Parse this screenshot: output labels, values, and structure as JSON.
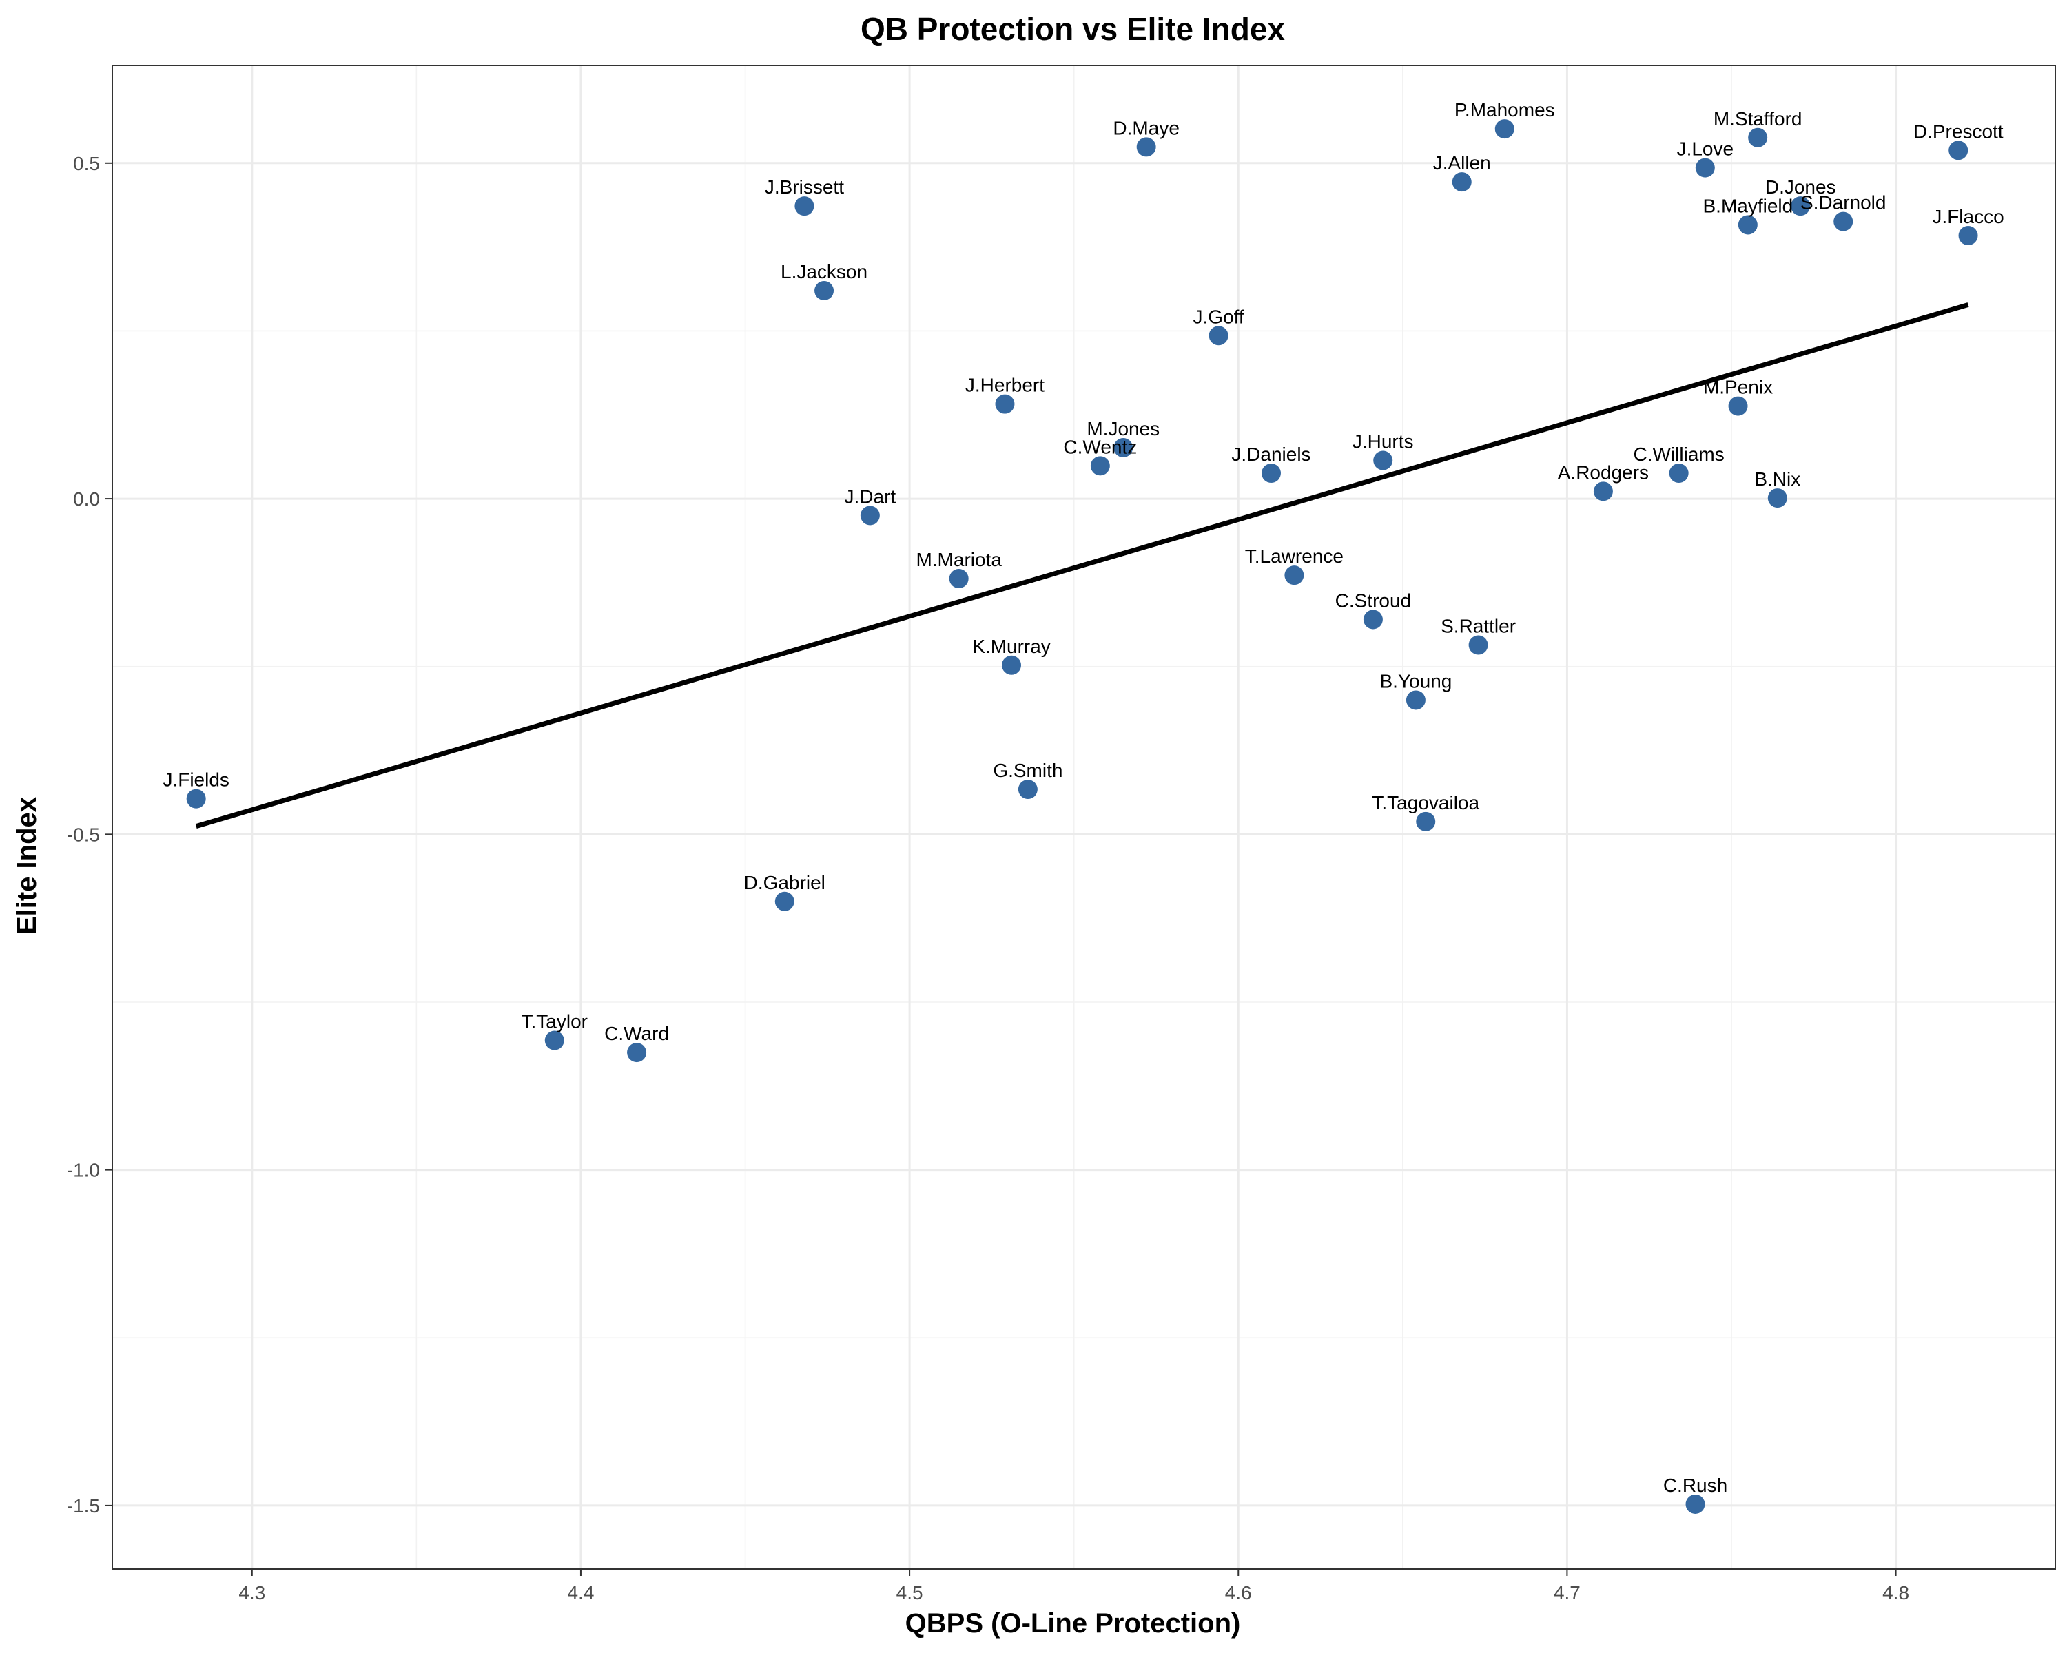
{
  "chart_data": {
    "type": "scatter",
    "title": "QB Protection vs Elite Index",
    "xlabel": "QBPS (O-Line Protection)",
    "ylabel": "Elite Index",
    "xlim": [
      4.2575,
      4.8485
    ],
    "ylim": [
      -1.5945,
      0.6455
    ],
    "x_ticks": [
      4.3,
      4.4,
      4.5,
      4.6,
      4.7,
      4.8
    ],
    "x_tick_labels": [
      "4.3",
      "4.4",
      "4.5",
      "4.6",
      "4.7",
      "4.8"
    ],
    "y_ticks": [
      0.5,
      0.0,
      -0.5,
      -1.0,
      -1.5
    ],
    "y_tick_labels": [
      "0.5",
      "0.0",
      "-0.5",
      "-1.0",
      "-1.5"
    ],
    "grid": true,
    "point_color": "#3568a0",
    "trend_line": {
      "x": [
        4.283,
        4.822
      ],
      "y": [
        -0.488,
        0.289
      ],
      "color": "#000000"
    },
    "points": [
      {
        "label": "P.Mahomes",
        "x": 4.681,
        "y": 0.551
      },
      {
        "label": "M.Stafford",
        "x": 4.758,
        "y": 0.538
      },
      {
        "label": "D.Maye",
        "x": 4.572,
        "y": 0.524
      },
      {
        "label": "D.Prescott",
        "x": 4.819,
        "y": 0.519
      },
      {
        "label": "J.Love",
        "x": 4.742,
        "y": 0.493
      },
      {
        "label": "J.Allen",
        "x": 4.668,
        "y": 0.472
      },
      {
        "label": "D.Jones",
        "x": 4.771,
        "y": 0.436
      },
      {
        "label": "J.Brissett",
        "x": 4.468,
        "y": 0.436
      },
      {
        "label": "S.Darnold",
        "x": 4.784,
        "y": 0.413
      },
      {
        "label": "B.Mayfield",
        "x": 4.755,
        "y": 0.408
      },
      {
        "label": "J.Flacco",
        "x": 4.822,
        "y": 0.392
      },
      {
        "label": "L.Jackson",
        "x": 4.474,
        "y": 0.31
      },
      {
        "label": "J.Goff",
        "x": 4.594,
        "y": 0.243
      },
      {
        "label": "J.Herbert",
        "x": 4.529,
        "y": 0.141
      },
      {
        "label": "M.Penix",
        "x": 4.752,
        "y": 0.138
      },
      {
        "label": "M.Jones",
        "x": 4.565,
        "y": 0.076
      },
      {
        "label": "J.Hurts",
        "x": 4.644,
        "y": 0.057
      },
      {
        "label": "C.Wentz",
        "x": 4.558,
        "y": 0.049
      },
      {
        "label": "C.Williams",
        "x": 4.734,
        "y": 0.038
      },
      {
        "label": "J.Daniels",
        "x": 4.61,
        "y": 0.038
      },
      {
        "label": "A.Rodgers",
        "x": 4.711,
        "y": 0.011
      },
      {
        "label": "B.Nix",
        "x": 4.764,
        "y": 0.001
      },
      {
        "label": "J.Dart",
        "x": 4.488,
        "y": -0.025
      },
      {
        "label": "T.Lawrence",
        "x": 4.617,
        "y": -0.114
      },
      {
        "label": "M.Mariota",
        "x": 4.515,
        "y": -0.119
      },
      {
        "label": "C.Stroud",
        "x": 4.641,
        "y": -0.18
      },
      {
        "label": "S.Rattler",
        "x": 4.673,
        "y": -0.218
      },
      {
        "label": "K.Murray",
        "x": 4.531,
        "y": -0.248
      },
      {
        "label": "B.Young",
        "x": 4.654,
        "y": -0.3
      },
      {
        "label": "G.Smith",
        "x": 4.536,
        "y": -0.433
      },
      {
        "label": "J.Fields",
        "x": 4.283,
        "y": -0.447
      },
      {
        "label": "T.Tagovailoa",
        "x": 4.657,
        "y": -0.481
      },
      {
        "label": "D.Gabriel",
        "x": 4.462,
        "y": -0.6
      },
      {
        "label": "T.Taylor",
        "x": 4.392,
        "y": -0.807
      },
      {
        "label": "C.Ward",
        "x": 4.417,
        "y": -0.825
      },
      {
        "label": "C.Rush",
        "x": 4.739,
        "y": -1.498
      }
    ]
  }
}
